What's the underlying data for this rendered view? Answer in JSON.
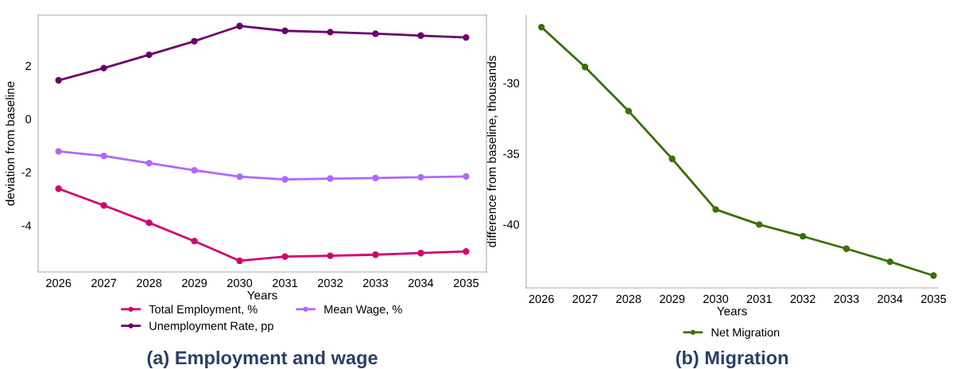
{
  "chart_data": [
    {
      "type": "line",
      "title": "(a) Employment and wage",
      "xlabel": "Years",
      "ylabel": "deviation from baseline",
      "categories": [
        "2026",
        "2027",
        "2028",
        "2029",
        "2030",
        "2031",
        "2032",
        "2033",
        "2034",
        "2035"
      ],
      "ylim": [
        -5.75,
        3.9
      ],
      "yticks": [
        -4,
        -2,
        0,
        2
      ],
      "legend": "bottom",
      "marker": "circle",
      "grid": false,
      "series": [
        {
          "name": "Total Employment, %",
          "color": "#d4006e",
          "values": [
            -2.62,
            -3.25,
            -3.9,
            -4.59,
            -5.33,
            -5.17,
            -5.14,
            -5.1,
            -5.04,
            -4.98
          ]
        },
        {
          "name": "Mean Wage, %",
          "color": "#b266ff",
          "values": [
            -1.22,
            -1.39,
            -1.66,
            -1.93,
            -2.17,
            -2.27,
            -2.24,
            -2.22,
            -2.19,
            -2.16
          ]
        },
        {
          "name": "Unemployment Rate, pp",
          "color": "#6b0069",
          "values": [
            1.45,
            1.91,
            2.41,
            2.92,
            3.49,
            3.31,
            3.26,
            3.2,
            3.13,
            3.06
          ]
        }
      ]
    },
    {
      "type": "line",
      "title": "(b) Migration",
      "xlabel": "Years",
      "ylabel": "difference from baseline, thousands",
      "categories": [
        "2026",
        "2027",
        "2028",
        "2029",
        "2030",
        "2031",
        "2032",
        "2033",
        "2034",
        "2035"
      ],
      "ylim": [
        -44.5,
        -25.2
      ],
      "yticks": [
        -40,
        -35,
        -30
      ],
      "legend": "bottom",
      "marker": "circle",
      "grid": false,
      "series": [
        {
          "name": "Net Migration",
          "color": "#3a7000",
          "values": [
            -26.05,
            -28.87,
            -31.99,
            -35.37,
            -38.95,
            -40.02,
            -40.85,
            -41.73,
            -42.65,
            -43.63
          ]
        }
      ]
    }
  ]
}
